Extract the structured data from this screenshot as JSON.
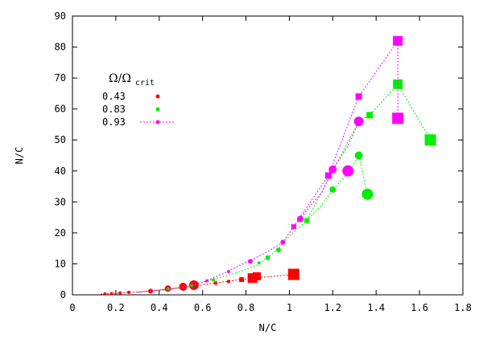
{
  "chart_data": {
    "type": "scatter",
    "xlabel": "N/C",
    "ylabel": "N/C",
    "xlim": [
      0,
      1.8
    ],
    "ylim": [
      0,
      90
    ],
    "xticks": [
      0,
      0.2,
      0.4,
      0.6,
      0.8,
      1,
      1.2,
      1.4,
      1.6,
      1.8
    ],
    "yticks": [
      0,
      10,
      20,
      30,
      40,
      50,
      60,
      70,
      80,
      90
    ],
    "xtick_labels": [
      "0",
      "0.2",
      "0.4",
      "0.6",
      "0.8",
      "1",
      "1.2",
      "1.4",
      "1.6",
      "1.8"
    ],
    "ytick_labels": [
      "0",
      "10",
      "20",
      "30",
      "40",
      "50",
      "60",
      "70",
      "80",
      "90"
    ],
    "grid": false,
    "legend_position": "top-left",
    "legend_title": "Ω/Ω",
    "legend_title_sub": "crit",
    "series": [
      {
        "name": "0.43",
        "color": "#ff0000",
        "line": [
          [
            0.13,
            0.2
          ],
          [
            0.2,
            0.5
          ],
          [
            0.3,
            0.9
          ],
          [
            0.4,
            1.5
          ],
          [
            0.5,
            2.3
          ],
          [
            0.58,
            3.0
          ],
          [
            0.68,
            4.0
          ],
          [
            0.78,
            5.0
          ],
          [
            0.85,
            5.5
          ],
          [
            0.95,
            6.1
          ],
          [
            1.02,
            6.6
          ]
        ],
        "markers": [
          {
            "x": 0.15,
            "y": 0.3,
            "size": 2,
            "shape": "circle"
          },
          {
            "x": 0.18,
            "y": 0.4,
            "size": 2,
            "shape": "circle"
          },
          {
            "x": 0.22,
            "y": 0.6,
            "size": 2,
            "shape": "circle"
          },
          {
            "x": 0.26,
            "y": 0.8,
            "size": 2,
            "shape": "circle"
          },
          {
            "x": 0.36,
            "y": 1.2,
            "size": 3,
            "shape": "circle"
          },
          {
            "x": 0.44,
            "y": 2.0,
            "size": 4,
            "shape": "circle"
          },
          {
            "x": 0.51,
            "y": 2.6,
            "size": 5,
            "shape": "circle"
          },
          {
            "x": 0.56,
            "y": 3.1,
            "size": 6,
            "shape": "circle"
          },
          {
            "x": 0.66,
            "y": 3.8,
            "size": 2,
            "shape": "square"
          },
          {
            "x": 0.72,
            "y": 4.3,
            "size": 2,
            "shape": "square"
          },
          {
            "x": 0.78,
            "y": 4.9,
            "size": 3,
            "shape": "square"
          },
          {
            "x": 0.83,
            "y": 5.4,
            "size": 6,
            "shape": "square"
          },
          {
            "x": 0.85,
            "y": 6.0,
            "size": 5,
            "shape": "square"
          },
          {
            "x": 1.02,
            "y": 6.6,
            "size": 7,
            "shape": "square"
          }
        ]
      },
      {
        "name": "0.83",
        "color": "#00ee00",
        "line": [
          [
            0.3,
            0.8
          ],
          [
            0.45,
            1.8
          ],
          [
            0.55,
            3.0
          ],
          [
            0.65,
            5.0
          ],
          [
            0.75,
            7.0
          ],
          [
            0.85,
            9.5
          ],
          [
            0.9,
            12.0
          ],
          [
            0.95,
            15.0
          ],
          [
            1.0,
            19.0
          ],
          [
            1.05,
            22.0
          ],
          [
            1.08,
            24.0
          ],
          [
            1.15,
            29.0
          ],
          [
            1.2,
            34.0
          ],
          [
            1.27,
            39.0
          ],
          [
            1.32,
            45.0
          ],
          [
            1.36,
            32.5
          ]
        ],
        "line2": [
          [
            1.08,
            24.0
          ],
          [
            1.2,
            40.0
          ],
          [
            1.32,
            56.0
          ],
          [
            1.37,
            58.0
          ],
          [
            1.5,
            68.0
          ],
          [
            1.65,
            50.0
          ]
        ],
        "markers": [
          {
            "x": 0.44,
            "y": 1.9,
            "size": 2,
            "shape": "circle"
          },
          {
            "x": 0.55,
            "y": 3.0,
            "size": 2,
            "shape": "circle"
          },
          {
            "x": 0.65,
            "y": 4.8,
            "size": 2,
            "shape": "circle"
          },
          {
            "x": 0.86,
            "y": 10.3,
            "size": 2,
            "shape": "circle"
          },
          {
            "x": 0.9,
            "y": 12.0,
            "size": 3,
            "shape": "circle"
          },
          {
            "x": 0.95,
            "y": 14.5,
            "size": 3,
            "shape": "circle"
          },
          {
            "x": 1.08,
            "y": 24.0,
            "size": 3,
            "shape": "square"
          },
          {
            "x": 1.2,
            "y": 34.0,
            "size": 4,
            "shape": "circle"
          },
          {
            "x": 1.32,
            "y": 45.0,
            "size": 5,
            "shape": "circle"
          },
          {
            "x": 1.36,
            "y": 32.5,
            "size": 7,
            "shape": "circle"
          },
          {
            "x": 1.37,
            "y": 58.0,
            "size": 4,
            "shape": "square"
          },
          {
            "x": 1.5,
            "y": 68.0,
            "size": 6,
            "shape": "square"
          },
          {
            "x": 1.65,
            "y": 50.0,
            "size": 7,
            "shape": "square"
          }
        ]
      },
      {
        "name": "0.93",
        "color": "#ff00ff",
        "line": [
          [
            0.3,
            0.8
          ],
          [
            0.5,
            2.3
          ],
          [
            0.6,
            4.0
          ],
          [
            0.7,
            7.0
          ],
          [
            0.8,
            10.5
          ],
          [
            0.86,
            12.5
          ],
          [
            0.9,
            14.0
          ],
          [
            0.97,
            17.0
          ],
          [
            1.02,
            22.0
          ],
          [
            1.05,
            24.5
          ],
          [
            1.1,
            29.0
          ],
          [
            1.15,
            33.0
          ],
          [
            1.2,
            40.5
          ],
          [
            1.27,
            48.0
          ],
          [
            1.32,
            56.0
          ]
        ],
        "line2": [
          [
            1.02,
            22.0
          ],
          [
            1.18,
            38.5
          ],
          [
            1.32,
            64.0
          ],
          [
            1.5,
            82.0
          ],
          [
            1.5,
            57.0
          ]
        ],
        "markers": [
          {
            "x": 0.62,
            "y": 4.5,
            "size": 2,
            "shape": "circle"
          },
          {
            "x": 0.72,
            "y": 7.5,
            "size": 2,
            "shape": "circle"
          },
          {
            "x": 0.82,
            "y": 10.8,
            "size": 3,
            "shape": "circle"
          },
          {
            "x": 0.97,
            "y": 17.0,
            "size": 3,
            "shape": "circle"
          },
          {
            "x": 1.02,
            "y": 22.0,
            "size": 3,
            "shape": "square"
          },
          {
            "x": 1.05,
            "y": 24.5,
            "size": 4,
            "shape": "circle"
          },
          {
            "x": 1.18,
            "y": 38.5,
            "size": 4,
            "shape": "square"
          },
          {
            "x": 1.2,
            "y": 40.5,
            "size": 5,
            "shape": "circle"
          },
          {
            "x": 1.27,
            "y": 40.0,
            "size": 7,
            "shape": "circle"
          },
          {
            "x": 1.32,
            "y": 56.0,
            "size": 6,
            "shape": "circle"
          },
          {
            "x": 1.32,
            "y": 64.0,
            "size": 4,
            "shape": "square"
          },
          {
            "x": 1.5,
            "y": 82.0,
            "size": 6,
            "shape": "square"
          },
          {
            "x": 1.5,
            "y": 57.0,
            "size": 7,
            "shape": "square"
          }
        ]
      }
    ]
  }
}
